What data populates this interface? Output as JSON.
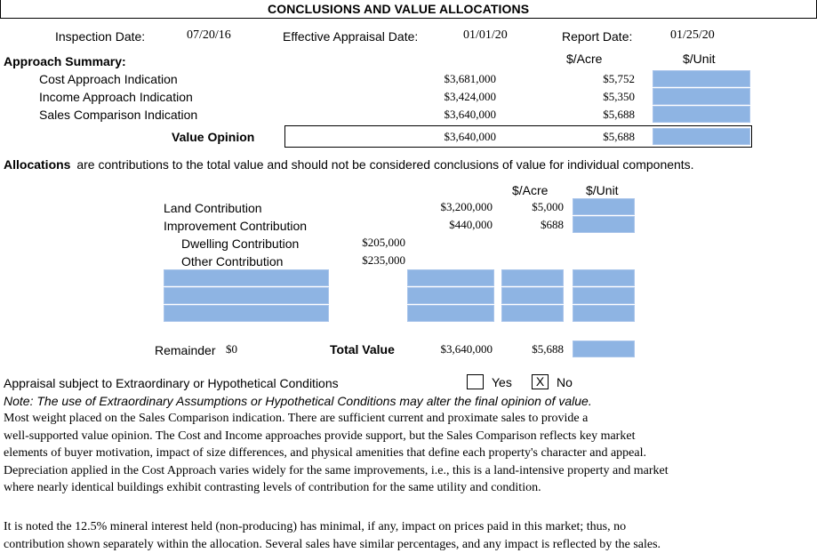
{
  "title": "CONCLUSIONS AND VALUE ALLOCATIONS",
  "header": {
    "inspection_label": "Inspection Date:",
    "inspection_value": "07/20/16",
    "effective_label": "Effective Appraisal Date:",
    "effective_value": "01/01/20",
    "report_label": "Report Date:",
    "report_value": "01/25/20"
  },
  "approach": {
    "heading": "Approach Summary:",
    "col_acre": "$/Acre",
    "col_unit": "$/Unit",
    "rows": [
      {
        "label": "Cost Approach Indication",
        "value": "$3,681,000",
        "acre": "$5,752"
      },
      {
        "label": "Income Approach Indication",
        "value": "$3,424,000",
        "acre": "$5,350"
      },
      {
        "label": "Sales Comparison Indication",
        "value": "$3,640,000",
        "acre": "$5,688"
      }
    ],
    "opinion_label": "Value Opinion",
    "opinion_value": "$3,640,000",
    "opinion_acre": "$5,688"
  },
  "allocations": {
    "heading": "Allocations",
    "note": "are contributions to the total value and should not be considered conclusions of value for individual components.",
    "col_acre": "$/Acre",
    "col_unit": "$/Unit",
    "land_label": "Land Contribution",
    "land_value": "$3,200,000",
    "land_acre": "$5,000",
    "improvement_label": "Improvement Contribution",
    "improvement_value": "$440,000",
    "improvement_acre": "$688",
    "dwelling_label": "Dwelling Contribution",
    "dwelling_value": "$205,000",
    "other_label": "Other Contribution",
    "other_value": "$235,000",
    "remainder_label": "Remainder",
    "remainder_value": "$0",
    "total_label": "Total Value",
    "total_value": "$3,640,000",
    "total_acre": "$5,688"
  },
  "conditions": {
    "label": "Appraisal subject to Extraordinary or Hypothetical Conditions",
    "yes_label": "Yes",
    "no_label": "No",
    "no_mark": "X",
    "note": "Note: The use of Extraordinary Assumptions or Hypothetical Conditions may alter the final opinion of value."
  },
  "commentary": {
    "p1_lines": [
      "Most weight placed on the Sales Comparison indication.  There are sufficient current and proximate sales to provide a",
      "well-supported value opinion.  The Cost and Income approaches provide support, but the Sales Comparison reflects key market",
      "elements of buyer motivation, impact of size differences, and physical amenities that define each property's character and appeal.",
      "Depreciation applied in the Cost Approach varies widely for the same improvements, i.e., this is a land-intensive property and market",
      "where nearly identical buildings exhibit contrasting levels of contribution for the same utility and condition."
    ],
    "p2_lines": [
      "It is noted the 12.5% mineral interest held (non-producing) has minimal, if any, impact on prices paid in this market; thus, no",
      "contribution shown separately within the allocation.  Several sales have similar percentages, and any impact is reflected by the sales."
    ]
  }
}
